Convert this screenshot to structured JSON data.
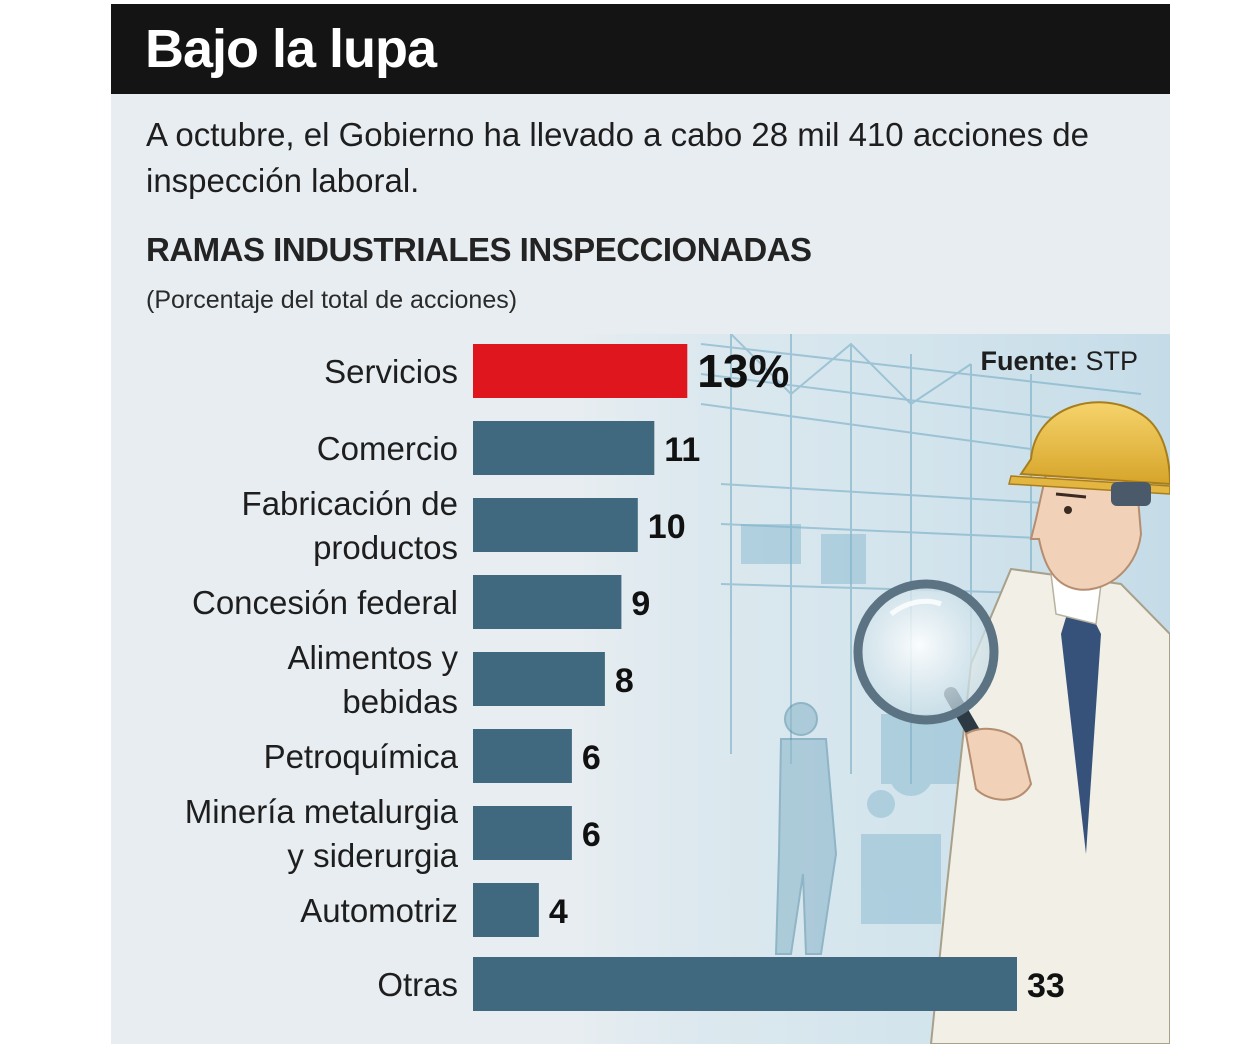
{
  "header": {
    "title": "Bajo la lupa"
  },
  "intro": "A octubre, el Gobierno ha llevado a cabo 28 mil 410 acciones de inspección laboral.",
  "subtitle": "RAMAS INDUSTRIALES INSPECCIONADAS",
  "unit_note": "(Porcentaje del total de acciones)",
  "source": {
    "label": "Fuente:",
    "value": "STP"
  },
  "colors": {
    "highlight": "#e0161e",
    "bar": "#40697f",
    "header_bg": "#141414",
    "panel_bg": "#e7edf1"
  },
  "chart_data": {
    "type": "bar",
    "orientation": "horizontal",
    "categories": [
      [
        "Servicios"
      ],
      [
        "Comercio"
      ],
      [
        "Fabricación de",
        "productos"
      ],
      [
        "Concesión federal"
      ],
      [
        "Alimentos y",
        "bebidas"
      ],
      [
        "Petroquímica"
      ],
      [
        "Minería metalurgia",
        "y siderurgia"
      ],
      [
        "Automotriz"
      ],
      [
        "Otras"
      ]
    ],
    "values": [
      13,
      11,
      10,
      9,
      8,
      6,
      6,
      4,
      33
    ],
    "value_labels": [
      "13%",
      "11",
      "10",
      "9",
      "8",
      "6",
      "6",
      "4",
      "33"
    ],
    "highlight_index": 0,
    "xlim": [
      0,
      33
    ]
  }
}
